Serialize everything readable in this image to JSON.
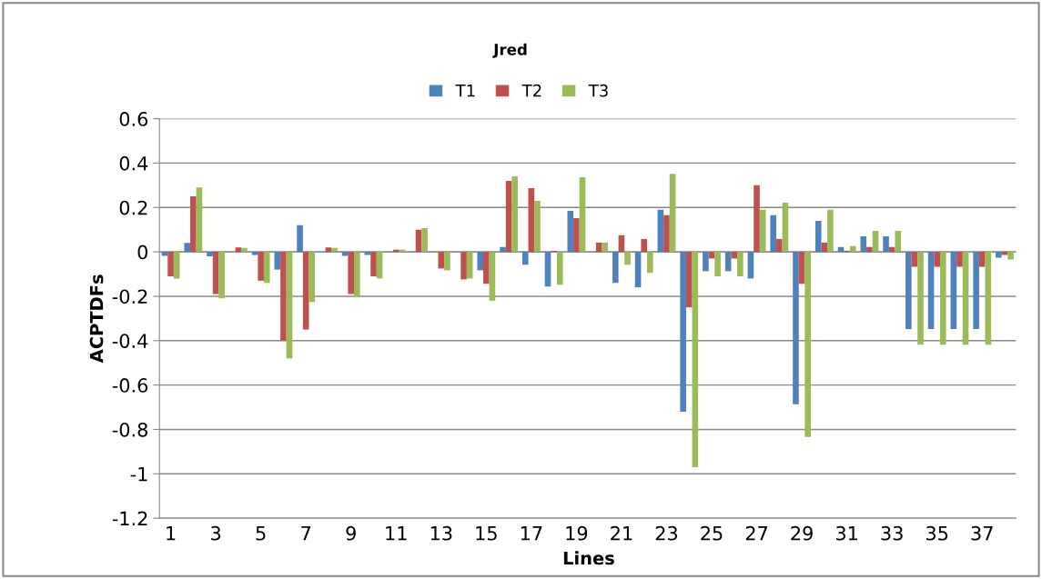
{
  "chart_data": {
    "type": "bar",
    "title": "Jred",
    "xlabel": "Lines",
    "ylabel": "ACPTDFs",
    "categories": [
      "1",
      null,
      "3",
      null,
      "5",
      null,
      "7",
      null,
      "9",
      null,
      "11",
      null,
      "13",
      null,
      "15",
      null,
      "17",
      null,
      "19",
      null,
      "21",
      null,
      "23",
      null,
      "25",
      null,
      "27",
      null,
      "29",
      null,
      "31",
      null,
      "33",
      null,
      "35",
      null,
      "37",
      null
    ],
    "series": [
      {
        "name": "T1",
        "color": "#4f81bd",
        "values": [
          -0.018,
          0.04,
          -0.02,
          0,
          -0.014,
          -0.08,
          0.12,
          0,
          -0.018,
          -0.014,
          0,
          0,
          0,
          0,
          -0.083,
          0.022,
          -0.058,
          -0.156,
          0.185,
          0,
          -0.14,
          -0.16,
          0.19,
          -0.72,
          -0.087,
          -0.087,
          -0.12,
          0.165,
          -0.687,
          0.14,
          0.022,
          0.07,
          0.07,
          -0.348,
          -0.348,
          -0.348,
          -0.348,
          -0.026
        ]
      },
      {
        "name": "T2",
        "color": "#c0504d",
        "values": [
          -0.11,
          0.25,
          -0.19,
          0.02,
          -0.13,
          -0.4,
          -0.35,
          0.02,
          -0.19,
          -0.11,
          0.01,
          0.1,
          -0.075,
          -0.124,
          -0.144,
          0.32,
          0.287,
          0.005,
          0.152,
          0.042,
          0.075,
          0.058,
          0.165,
          -0.25,
          -0.03,
          -0.03,
          0.3,
          0.058,
          -0.144,
          0.042,
          0.005,
          0.022,
          0.022,
          -0.067,
          -0.067,
          -0.067,
          -0.067,
          -0.014
        ]
      },
      {
        "name": "T3",
        "color": "#9bbb59",
        "values": [
          -0.12,
          0.29,
          -0.21,
          0.018,
          -0.14,
          -0.48,
          -0.226,
          0.018,
          -0.205,
          -0.12,
          0.01,
          0.107,
          -0.083,
          -0.12,
          -0.22,
          0.34,
          0.23,
          -0.148,
          0.336,
          0.042,
          -0.058,
          -0.095,
          0.352,
          -0.97,
          -0.11,
          -0.11,
          0.19,
          0.222,
          -0.834,
          0.19,
          0.026,
          0.095,
          0.095,
          -0.418,
          -0.418,
          -0.418,
          -0.418,
          -0.034
        ]
      }
    ],
    "ylim": [
      -1.2,
      0.6
    ],
    "yticks": [
      -1.2,
      -1,
      -0.8,
      -0.6,
      -0.4,
      -0.2,
      0,
      0.2,
      0.4,
      0.6
    ],
    "grid": "y",
    "legend": "top"
  }
}
